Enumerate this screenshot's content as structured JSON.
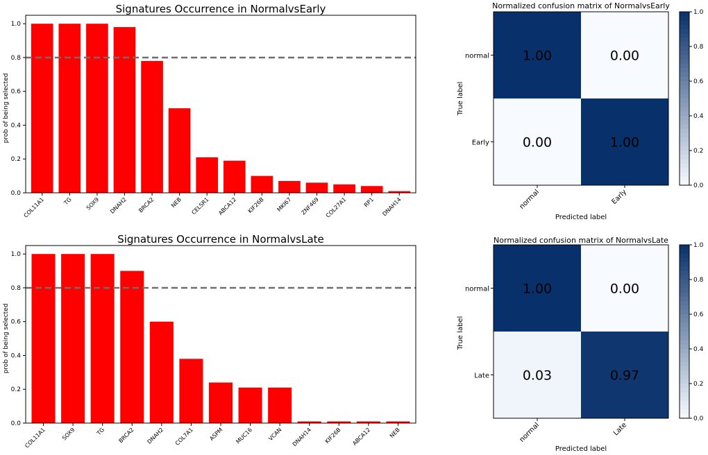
{
  "colors": {
    "bar": "#ff0000",
    "threshold": "#6e6e6e",
    "cm_dark": "#08306b",
    "cm_light": "#f7fbff",
    "text_on_dark": "#ffffff",
    "text_on_light": "#000000"
  },
  "chart_data": [
    {
      "type": "bar",
      "title": "Signatures Occurrence in NormalvsEarly",
      "xlabel": "",
      "ylabel": "prob of being selected",
      "categories": [
        "COL11A1",
        "TG",
        "SOX9",
        "DNAH2",
        "BRCA2",
        "NEB",
        "CELSR1",
        "ABCA12",
        "KIF26B",
        "MKI67",
        "ZNF469",
        "COL27A1",
        "RP1",
        "DNAH14"
      ],
      "values": [
        1.0,
        1.0,
        1.0,
        0.98,
        0.78,
        0.5,
        0.21,
        0.19,
        0.1,
        0.07,
        0.06,
        0.05,
        0.04,
        0.01
      ],
      "ylim": [
        0,
        1.05
      ],
      "yticks": [
        "0.0",
        "0.2",
        "0.4",
        "0.6",
        "0.8",
        "1.0"
      ],
      "threshold": 0.8
    },
    {
      "type": "heatmap",
      "title": "Normalized confusion matrix of NormalvsEarly",
      "xlabel": "Predicted label",
      "ylabel": "True label",
      "x_categories": [
        "normal",
        "Early"
      ],
      "y_categories": [
        "normal",
        "Early"
      ],
      "values": [
        [
          1.0,
          0.0
        ],
        [
          0.0,
          1.0
        ]
      ],
      "labels": [
        [
          "1.00",
          "0.00"
        ],
        [
          "0.00",
          "1.00"
        ]
      ],
      "colorbar_ticks": [
        "0.0",
        "0.2",
        "0.4",
        "0.6",
        "0.8",
        "1.0"
      ]
    },
    {
      "type": "bar",
      "title": "Signatures Occurrence in NormalvsLate",
      "xlabel": "",
      "ylabel": "prob of being selected",
      "categories": [
        "COL11A1",
        "SOX9",
        "TG",
        "BRCA2",
        "DNAH2",
        "COL7A1",
        "ASPM",
        "MUC16",
        "VCAN",
        "DNAH14",
        "KIF26B",
        "ABCA12",
        "NEB"
      ],
      "values": [
        1.0,
        1.0,
        1.0,
        0.9,
        0.6,
        0.38,
        0.24,
        0.21,
        0.21,
        0.01,
        0.01,
        0.01,
        0.01
      ],
      "ylim": [
        0,
        1.05
      ],
      "yticks": [
        "0.0",
        "0.2",
        "0.4",
        "0.6",
        "0.8",
        "1.0"
      ],
      "threshold": 0.8
    },
    {
      "type": "heatmap",
      "title": "Normalized confusion matrix of NormalvsLate",
      "xlabel": "Predicted label",
      "ylabel": "True label",
      "x_categories": [
        "normal",
        "Late"
      ],
      "y_categories": [
        "normal",
        "Late"
      ],
      "values": [
        [
          1.0,
          0.0
        ],
        [
          0.03,
          0.97
        ]
      ],
      "labels": [
        [
          "1.00",
          "0.00"
        ],
        [
          "0.03",
          "0.97"
        ]
      ],
      "colorbar_ticks": [
        "0.0",
        "0.2",
        "0.4",
        "0.6",
        "0.8",
        "1.0"
      ]
    }
  ]
}
